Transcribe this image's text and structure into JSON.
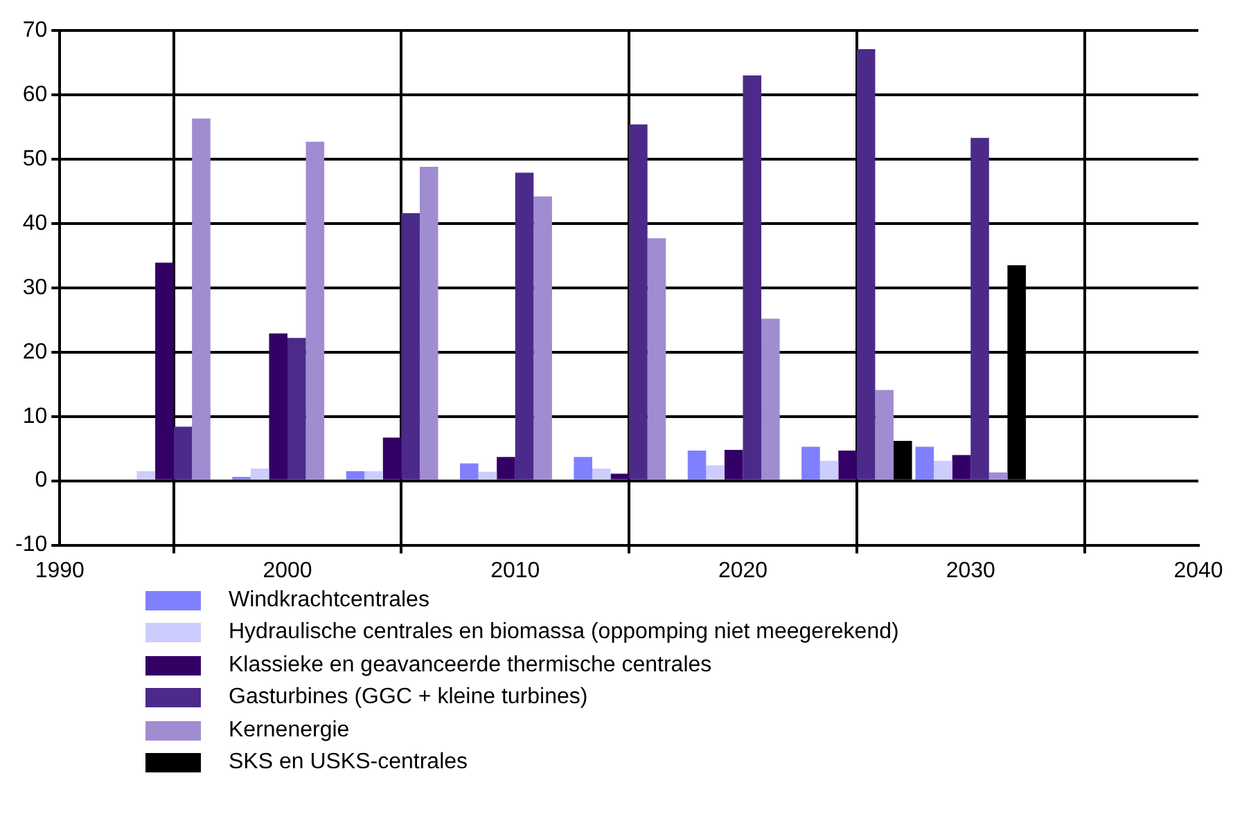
{
  "chart_data": {
    "type": "bar",
    "x": [
      1995,
      2000,
      2005,
      2010,
      2015,
      2020,
      2025,
      2030
    ],
    "series": [
      {
        "name": "Windkrachtcentrales",
        "color": "#8080ff",
        "values": [
          0,
          0.6,
          1.5,
          2.7,
          3.7,
          4.7,
          5.3,
          5.3
        ]
      },
      {
        "name": "Hydraulische centrales en biomassa (oppomping niet meegerekend)",
        "color": "#ccccff",
        "values": [
          1.5,
          1.9,
          1.5,
          1.4,
          1.9,
          2.4,
          3.1,
          3.1
        ]
      },
      {
        "name": "Klassieke en geavanceerde thermische centrales",
        "color": "#330066",
        "values": [
          33.9,
          22.9,
          6.7,
          3.7,
          1.1,
          4.8,
          4.7,
          4.0
        ]
      },
      {
        "name": "Gasturbines (GGC + kleine turbines)",
        "color": "#4b2a8a",
        "values": [
          8.4,
          22.2,
          41.6,
          47.9,
          55.4,
          63.0,
          67.1,
          53.3
        ]
      },
      {
        "name": "Kernenergie",
        "color": "#a08cd0",
        "values": [
          56.3,
          52.7,
          48.8,
          44.2,
          37.7,
          25.2,
          14.1,
          1.3
        ]
      },
      {
        "name": "SKS en USKS-centrales",
        "color": "#000000",
        "values": [
          0,
          0,
          0,
          0,
          0,
          0,
          6.2,
          33.5
        ]
      }
    ],
    "xlim": [
      1990,
      2040
    ],
    "xticks": [
      1990,
      2000,
      2010,
      2020,
      2030,
      2040
    ],
    "ylim": [
      -10,
      70
    ],
    "yticks": [
      -10,
      0,
      10,
      20,
      30,
      40,
      50,
      60,
      70
    ],
    "grid": true,
    "legend": "bottom"
  }
}
